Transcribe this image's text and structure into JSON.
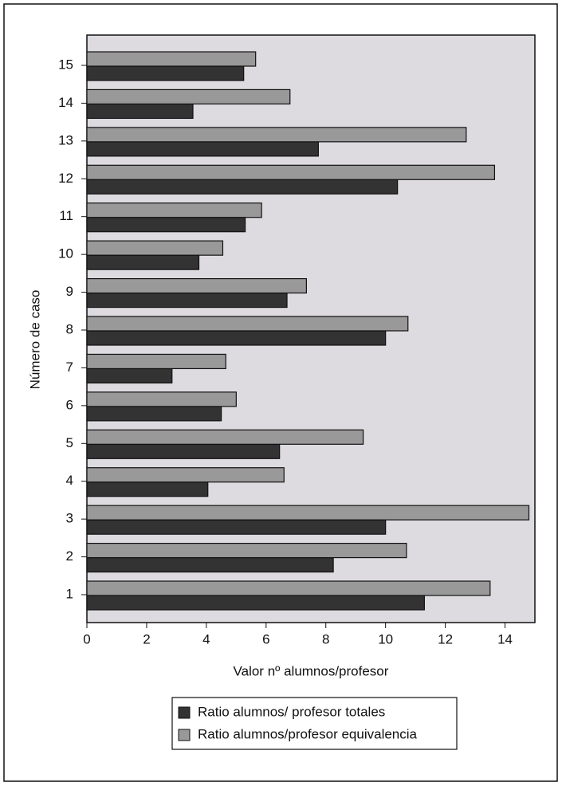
{
  "chart_data": {
    "type": "hbar",
    "x_label": "Valor nº alumnos/profesor",
    "y_label": "Número de caso",
    "categories": [
      "1",
      "2",
      "3",
      "4",
      "5",
      "6",
      "7",
      "8",
      "9",
      "10",
      "11",
      "12",
      "13",
      "14",
      "15"
    ],
    "series": [
      {
        "name": "Ratio alumnos/ profesor totales",
        "color": "#333333",
        "values": [
          11.3,
          8.25,
          10,
          4.05,
          6.45,
          4.5,
          2.85,
          10,
          6.7,
          3.75,
          5.3,
          10.4,
          7.75,
          3.55,
          5.25
        ]
      },
      {
        "name": "Ratio alumnos/profesor equivalencia",
        "color": "#999999",
        "values": [
          13.5,
          10.7,
          14.8,
          6.6,
          9.25,
          5,
          4.65,
          10.75,
          7.35,
          4.55,
          5.85,
          13.65,
          12.7,
          6.8,
          5.65
        ]
      }
    ],
    "xlim": [
      0,
      15
    ],
    "xticks": [
      0,
      2,
      4,
      6,
      8,
      10,
      12,
      14
    ],
    "plot_background": "#dddbe0"
  }
}
